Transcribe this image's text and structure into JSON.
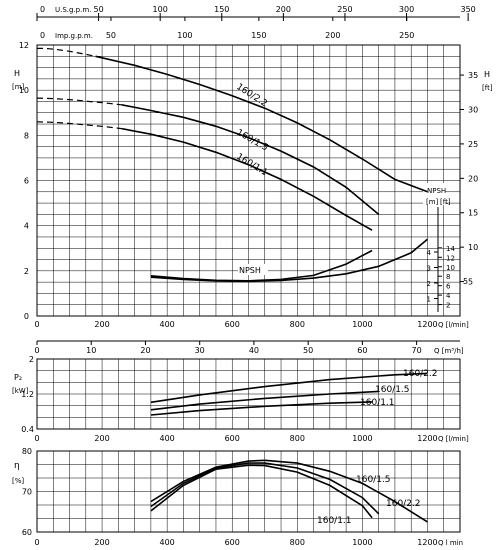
{
  "chart_data": [
    {
      "id": "head",
      "type": "line",
      "x_axis": {
        "label": "Q [l/min]",
        "range": [
          0,
          1300
        ],
        "ticks": [
          0,
          200,
          400,
          600,
          800,
          1000,
          1200
        ]
      },
      "x_axis_m3h": {
        "label": "Q [m³/h]",
        "range": [
          0,
          78
        ],
        "ticks": [
          0,
          10,
          20,
          30,
          40,
          50,
          60,
          70
        ]
      },
      "x_axis_usgpm": {
        "label": "U.S.g.p.m.",
        "range": [
          0,
          343.4
        ],
        "ticks": [
          0,
          50,
          100,
          150,
          200,
          250,
          300,
          350
        ]
      },
      "x_axis_impgpm": {
        "label": "Imp.g.p.m.",
        "range": [
          0,
          286
        ],
        "ticks": [
          0,
          50,
          100,
          150,
          200,
          250
        ]
      },
      "y_axis": {
        "label": "H [m]",
        "range": [
          0,
          12
        ],
        "ticks": [
          0,
          2,
          4,
          6,
          8,
          10,
          12
        ]
      },
      "y_axis_right": {
        "label": "H [ft]",
        "range": [
          0,
          39.37
        ],
        "ticks": [
          5,
          10,
          15,
          20,
          25,
          30,
          35
        ]
      },
      "npsh_axis": {
        "label": "NPSH",
        "unit_m": "[m]",
        "unit_ft": "[ft]",
        "ticks_m": [
          1,
          2,
          3,
          4
        ],
        "ticks_ft": [
          2,
          4,
          6,
          8,
          10,
          12,
          14
        ],
        "extra_ft_tick": 5
      },
      "grid": true,
      "series": [
        {
          "name": "160/2.2",
          "dashed_x": [
            0,
            20,
            40,
            60,
            80,
            100,
            130,
            180
          ],
          "dashed_y": [
            11.85,
            11.85,
            11.83,
            11.8,
            11.76,
            11.72,
            11.64,
            11.5
          ],
          "x": [
            180,
            300,
            400,
            500,
            600,
            700,
            800,
            900,
            1000,
            1100,
            1200
          ],
          "y": [
            11.5,
            11.1,
            10.7,
            10.25,
            9.75,
            9.2,
            8.55,
            7.8,
            6.95,
            6.05,
            5.5
          ]
        },
        {
          "name": "160/1.5",
          "dashed_x": [
            0,
            40,
            80,
            120,
            160,
            200,
            260
          ],
          "dashed_y": [
            9.65,
            9.63,
            9.6,
            9.56,
            9.5,
            9.45,
            9.35
          ],
          "x": [
            260,
            350,
            450,
            550,
            650,
            750,
            850,
            950,
            1050
          ],
          "y": [
            9.35,
            9.1,
            8.8,
            8.4,
            7.9,
            7.3,
            6.6,
            5.7,
            4.5
          ]
        },
        {
          "name": "160/1.1",
          "dashed_x": [
            0,
            40,
            80,
            120,
            160,
            200,
            260
          ],
          "dashed_y": [
            8.6,
            8.58,
            8.55,
            8.5,
            8.45,
            8.4,
            8.3
          ],
          "x": [
            260,
            350,
            450,
            550,
            650,
            750,
            850,
            950,
            1030
          ],
          "y": [
            8.3,
            8.05,
            7.7,
            7.25,
            6.7,
            6.05,
            5.3,
            4.45,
            3.8
          ]
        }
      ],
      "npsh_series": [
        {
          "name": "NPSH 160/1.1",
          "x": [
            350,
            450,
            550,
            650,
            750,
            850,
            950,
            1030
          ],
          "y": [
            1.78,
            1.66,
            1.58,
            1.56,
            1.62,
            1.8,
            2.3,
            2.9
          ]
        },
        {
          "name": "NPSH 160/2.2",
          "x": [
            350,
            450,
            550,
            650,
            750,
            850,
            950,
            1050,
            1150,
            1200
          ],
          "y": [
            1.72,
            1.62,
            1.55,
            1.53,
            1.57,
            1.68,
            1.87,
            2.2,
            2.8,
            3.4
          ]
        }
      ],
      "annotations": [
        "160/2.2",
        "160/1.5",
        "160/1.1",
        "NPSH"
      ]
    },
    {
      "id": "power",
      "type": "line",
      "x_axis": {
        "label": "Q [l/min]",
        "range": [
          0,
          1300
        ],
        "ticks": [
          0,
          200,
          400,
          600,
          800,
          1000,
          1200
        ]
      },
      "y_axis": {
        "label": "P₂ [kW]",
        "range": [
          0.4,
          2.0
        ],
        "ticks": [
          0.4,
          1.2,
          2.0
        ]
      },
      "grid": true,
      "series": [
        {
          "name": "160/2.2",
          "x": [
            350,
            500,
            700,
            900,
            1100,
            1200
          ],
          "y": [
            1.01,
            1.18,
            1.37,
            1.53,
            1.64,
            1.67
          ]
        },
        {
          "name": "160/1.5",
          "x": [
            350,
            500,
            700,
            900,
            1050
          ],
          "y": [
            0.84,
            0.97,
            1.1,
            1.2,
            1.26
          ]
        },
        {
          "name": "160/1.1",
          "x": [
            350,
            500,
            700,
            900,
            1030
          ],
          "y": [
            0.72,
            0.82,
            0.92,
            0.99,
            1.02
          ]
        }
      ]
    },
    {
      "id": "efficiency",
      "type": "line",
      "x_axis": {
        "label": "Q l min",
        "range": [
          0,
          1300
        ],
        "ticks": [
          0,
          200,
          400,
          600,
          800,
          1000,
          1200
        ]
      },
      "y_axis": {
        "label": "η [%]",
        "range": [
          60,
          80
        ],
        "ticks": [
          60,
          70,
          80
        ]
      },
      "grid": true,
      "series": [
        {
          "name": "160/2.2",
          "x": [
            350,
            450,
            550,
            650,
            700,
            800,
            900,
            1000,
            1100,
            1200
          ],
          "y": [
            67.5,
            72.5,
            76.0,
            77.5,
            77.7,
            77.0,
            75.0,
            72.0,
            67.5,
            62.5
          ]
        },
        {
          "name": "160/1.5",
          "x": [
            350,
            450,
            550,
            650,
            700,
            800,
            900,
            1000,
            1050
          ],
          "y": [
            66.3,
            72.0,
            75.8,
            77.0,
            77.0,
            75.8,
            73.0,
            68.5,
            64.5
          ]
        },
        {
          "name": "160/1.1",
          "x": [
            350,
            450,
            550,
            650,
            700,
            800,
            900,
            1000,
            1030
          ],
          "y": [
            65.2,
            71.5,
            75.5,
            76.5,
            76.4,
            74.8,
            71.5,
            66.5,
            63.5
          ]
        }
      ]
    }
  ]
}
